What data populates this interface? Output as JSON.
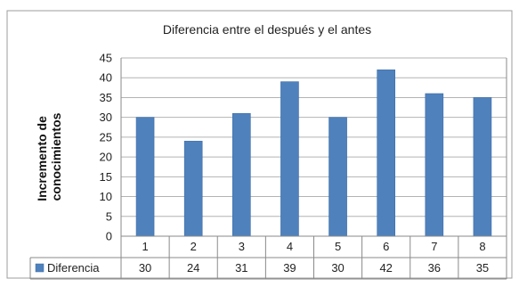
{
  "chart_data": {
    "type": "bar",
    "title": "Diferencia entre el después y el antes",
    "ylabel_lines": [
      "Incremento de",
      "conocimientos"
    ],
    "categories": [
      "1",
      "2",
      "3",
      "4",
      "5",
      "6",
      "7",
      "8"
    ],
    "series": [
      {
        "name": "Diferencia",
        "values": [
          30,
          24,
          31,
          39,
          30,
          42,
          36,
          35
        ]
      }
    ],
    "ylim": [
      0,
      45
    ],
    "yticks": [
      0,
      5,
      10,
      15,
      20,
      25,
      30,
      35,
      40,
      45
    ],
    "grid": true,
    "legend": "data-table-left",
    "colors": {
      "bar": "#4f81bd",
      "grid": "#b3b3b3"
    }
  }
}
